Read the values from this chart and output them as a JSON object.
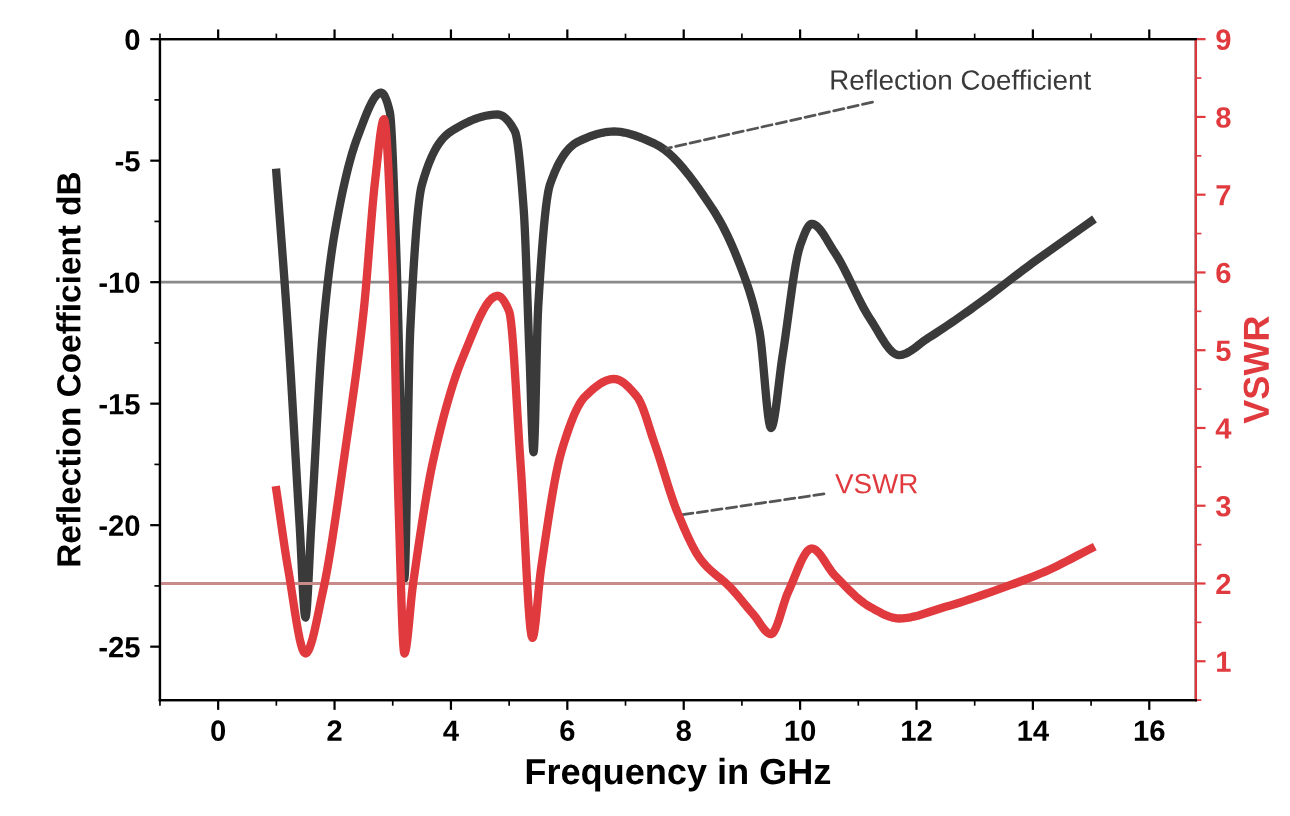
{
  "chart_data": {
    "type": "line",
    "xlabel": "Frequency in GHz",
    "ylabel": "Reflection Coefficient dB",
    "y2label": "VSWR",
    "xlim": [
      -1,
      16.8
    ],
    "xticks": [
      0,
      2,
      4,
      6,
      8,
      10,
      12,
      14,
      16
    ],
    "ylim": [
      -27.2,
      0
    ],
    "yticks": [
      -25,
      -20,
      -15,
      -10,
      -5,
      0
    ],
    "y2lim": [
      0.5,
      9
    ],
    "y2ticks": [
      1,
      2,
      3,
      4,
      5,
      6,
      7,
      8,
      9
    ],
    "grid": false,
    "legend": false,
    "marker": "none",
    "line_style": "solid",
    "series": [
      {
        "color": "#3a3a3a",
        "x": [
          1.0,
          1.2,
          1.4,
          1.5,
          1.6,
          1.8,
          2.0,
          2.4,
          2.8,
          2.95,
          3.05,
          3.15,
          3.2,
          3.3,
          3.5,
          4.0,
          4.8,
          5.1,
          5.25,
          5.35,
          5.42,
          5.5,
          5.7,
          6.2,
          6.8,
          7.5,
          8.5,
          9.0,
          9.3,
          9.5,
          9.7,
          10.0,
          10.2,
          10.6,
          11.2,
          11.7,
          12.2,
          13.0,
          14.0,
          15.0
        ],
        "values": [
          -5.5,
          -12,
          -20,
          -23.8,
          -20,
          -12,
          -8,
          -4,
          -2.2,
          -3,
          -8,
          -17,
          -22.2,
          -12,
          -6,
          -3.8,
          -3.1,
          -3.8,
          -7,
          -13,
          -17,
          -11,
          -6,
          -4.2,
          -3.8,
          -4.3,
          -7,
          -9.5,
          -12,
          -16,
          -13,
          -8.5,
          -7.6,
          -8.8,
          -11.5,
          -13,
          -12.3,
          -11,
          -9.2,
          -7.5
        ]
      },
      {
        "color": "#e03a3e",
        "axis": "y2",
        "x": [
          1.0,
          1.2,
          1.5,
          1.8,
          2.2,
          2.5,
          2.7,
          2.85,
          3.0,
          3.1,
          3.2,
          3.35,
          3.7,
          4.2,
          4.8,
          5.0,
          5.2,
          5.4,
          5.55,
          5.9,
          6.3,
          6.8,
          7.2,
          7.5,
          7.9,
          8.3,
          8.8,
          9.2,
          9.5,
          9.8,
          10.2,
          10.6,
          11.2,
          11.7,
          12.5,
          13.5,
          14.2,
          15.0
        ],
        "values": [
          3.2,
          2.2,
          1.1,
          1.9,
          3.8,
          5.5,
          7.2,
          7.97,
          6,
          3,
          1.1,
          2,
          3.6,
          4.9,
          5.7,
          5.5,
          3.5,
          1.3,
          2.2,
          3.7,
          4.4,
          4.63,
          4.4,
          3.8,
          2.9,
          2.3,
          1.95,
          1.6,
          1.35,
          1.9,
          2.45,
          2.1,
          1.7,
          1.55,
          1.7,
          1.95,
          2.15,
          2.45
        ]
      }
    ],
    "ref_lines": [
      {
        "axis": "y",
        "value": -10,
        "color": "#8a8a8a"
      },
      {
        "axis": "y2",
        "value": 2,
        "color": "#c98a8a"
      }
    ],
    "annotations": [
      {
        "text": "Reflection Coefficient",
        "x": 7.7,
        "y": -4.5
      },
      {
        "text": "VSWR",
        "x": 7.9,
        "y": -19.6
      }
    ]
  }
}
